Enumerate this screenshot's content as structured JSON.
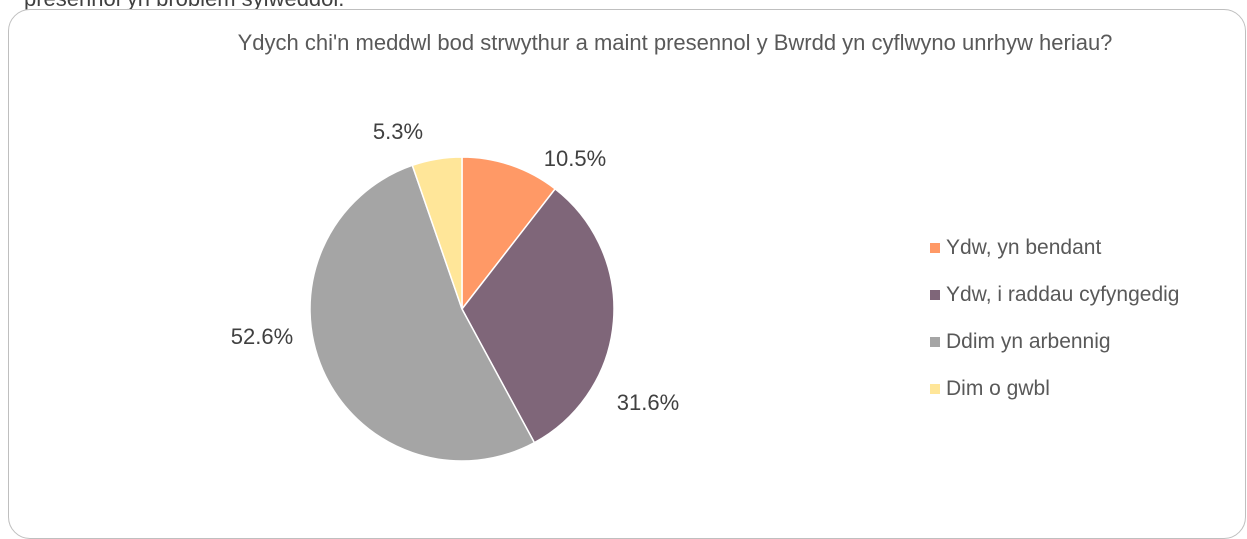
{
  "page": {
    "cut_off_text": "presennol yn broblem sylweddol."
  },
  "chart_data": {
    "type": "pie",
    "title": "Ydych chi'n meddwl bod strwythur a maint presennol y Bwrdd yn cyflwyno unrhyw heriau?",
    "categories": [
      "Ydw, yn bendant",
      "Ydw, i raddau cyfyngedig",
      "Ddim yn arbennig",
      "Dim o gwbl"
    ],
    "values": [
      10.5,
      31.6,
      52.6,
      5.3
    ],
    "data_labels": [
      "10.5%",
      "31.6%",
      "52.6%",
      "5.3%"
    ],
    "colors": [
      "#FF9966",
      "#7F6679",
      "#A5A5A5",
      "#FFE699"
    ],
    "start_angle": "12 o'clock, clockwise",
    "legend_position": "right"
  }
}
